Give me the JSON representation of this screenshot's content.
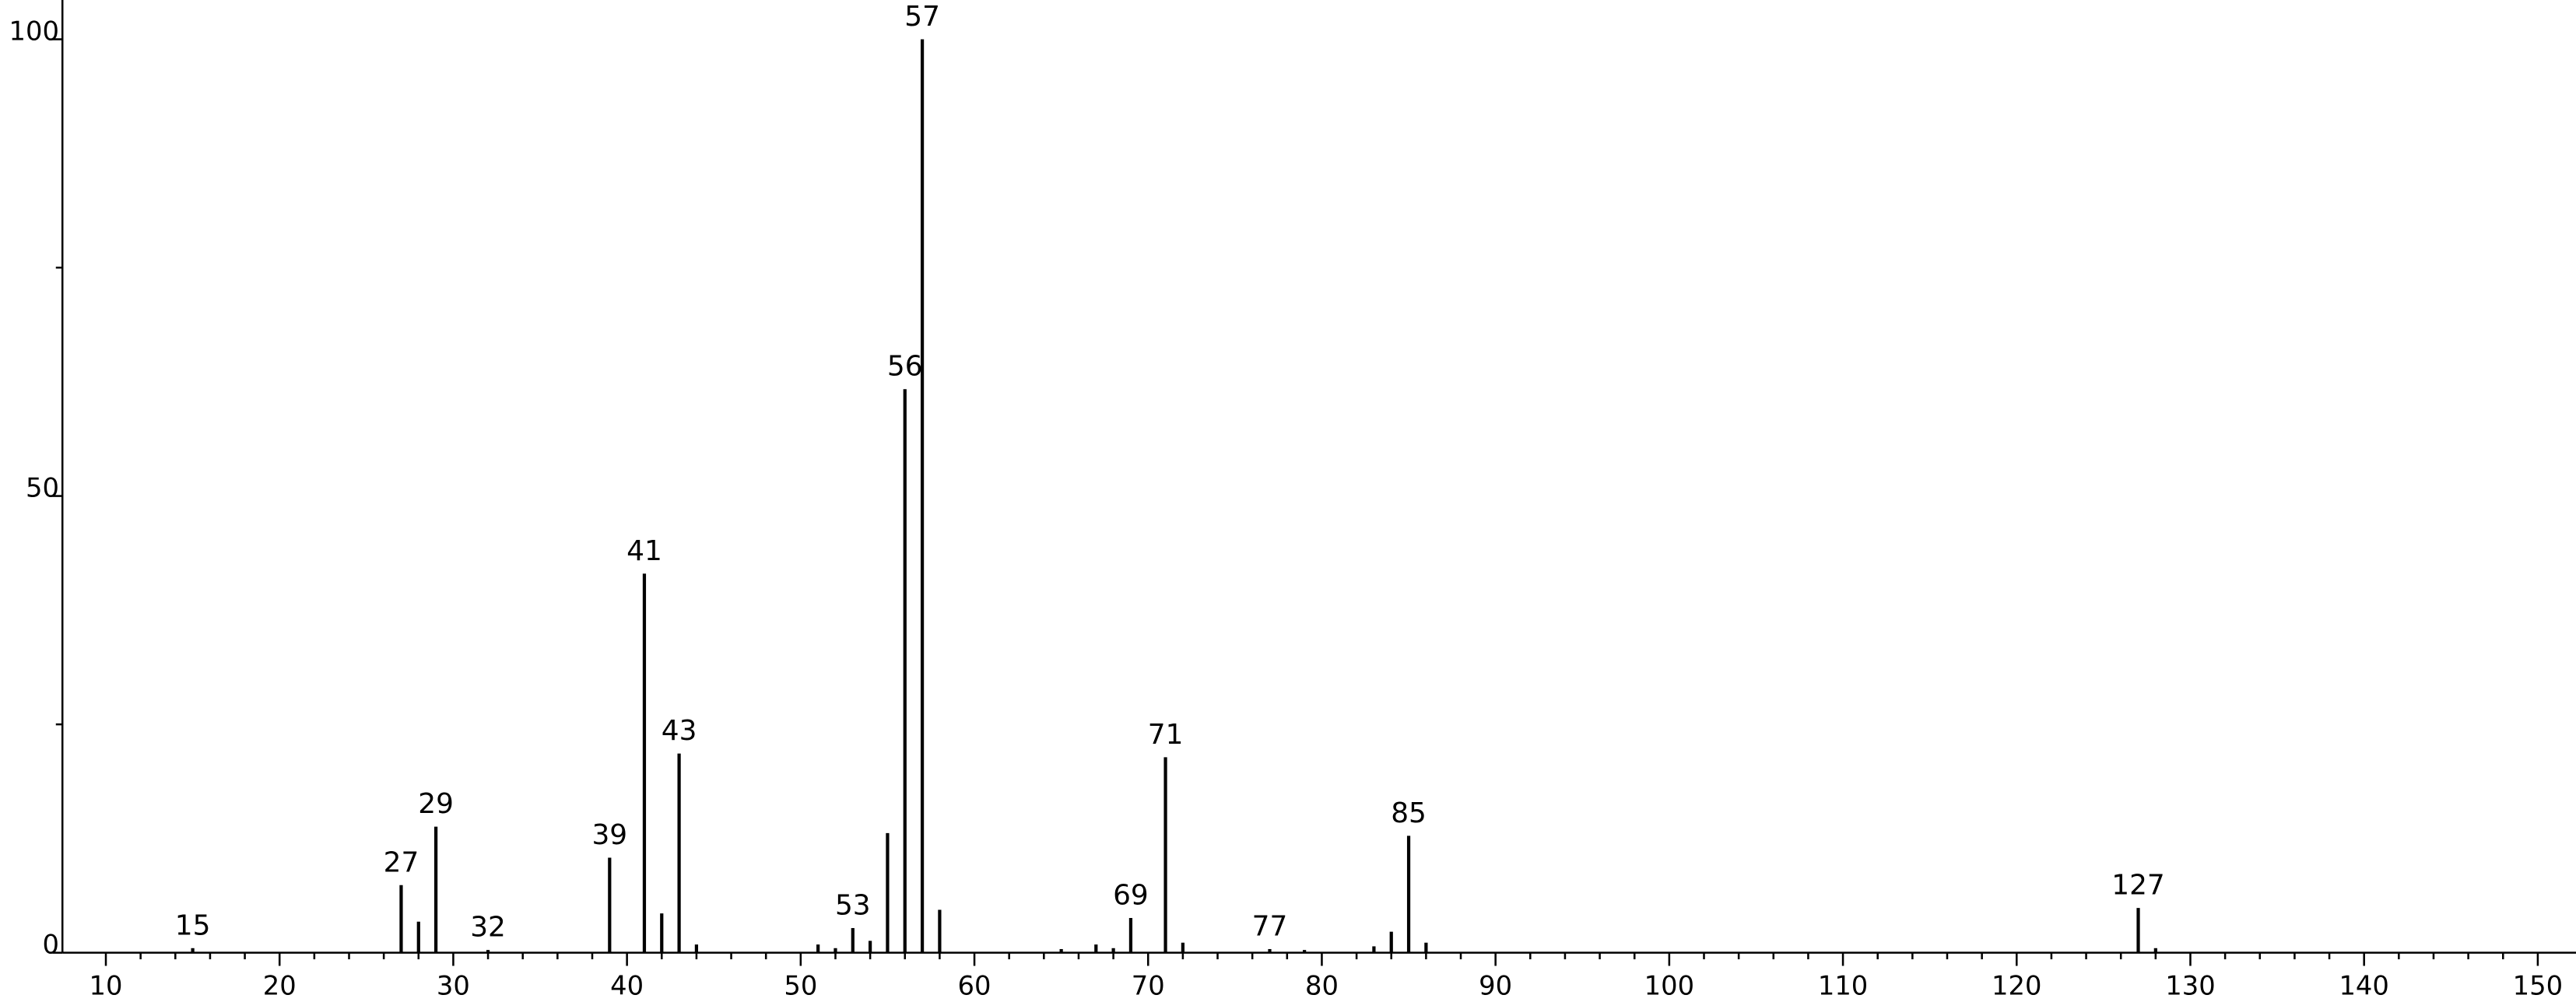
{
  "chart_data": {
    "type": "stick",
    "x": [
      15,
      27,
      28,
      29,
      32,
      39,
      41,
      42,
      43,
      44,
      51,
      52,
      53,
      54,
      55,
      56,
      57,
      58,
      65,
      67,
      68,
      69,
      71,
      72,
      77,
      79,
      83,
      84,
      85,
      86,
      127,
      128
    ],
    "values": [
      0.5,
      7.4,
      3.4,
      13.8,
      0.3,
      10.4,
      41.5,
      4.3,
      21.8,
      0.9,
      0.9,
      0.5,
      2.7,
      1.3,
      13.1,
      61.7,
      100,
      4.7,
      0.4,
      0.9,
      0.5,
      3.8,
      21.4,
      1.1,
      0.4,
      0.3,
      0.7,
      2.3,
      12.8,
      1.1,
      4.9,
      0.5
    ],
    "peak_labels": [
      15,
      27,
      29,
      32,
      39,
      41,
      43,
      53,
      56,
      57,
      69,
      71,
      77,
      85,
      127
    ],
    "color": "#000000",
    "xlim": [
      7.5,
      152.2
    ],
    "ylim": [
      0,
      104.3
    ],
    "xticks": [
      10,
      20,
      30,
      40,
      50,
      60,
      70,
      80,
      90,
      100,
      110,
      120,
      130,
      140,
      150
    ],
    "yticks": [
      0,
      50,
      100
    ]
  }
}
